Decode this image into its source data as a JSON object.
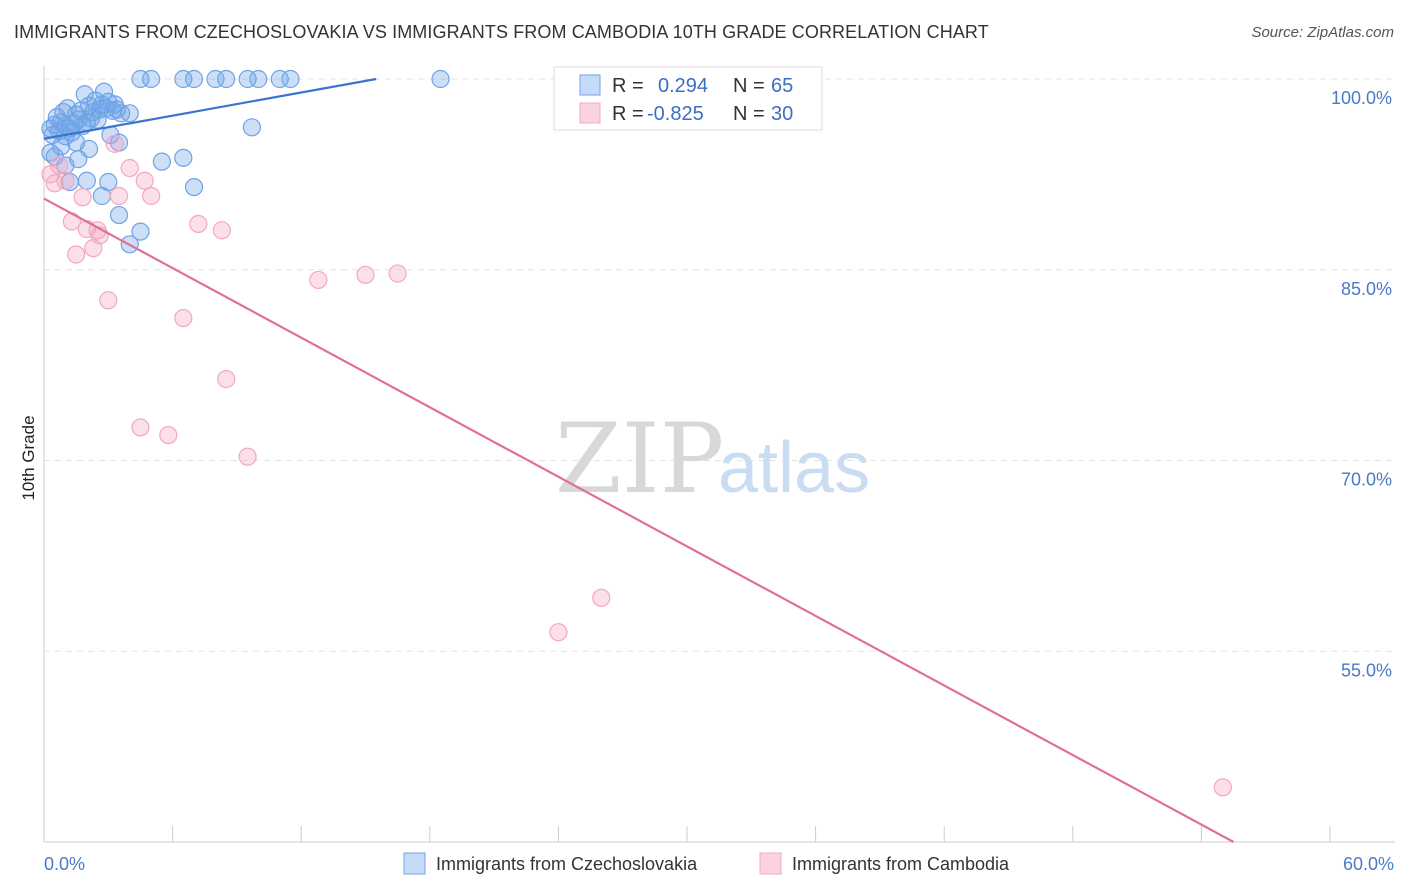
{
  "title": "IMMIGRANTS FROM CZECHOSLOVAKIA VS IMMIGRANTS FROM CAMBODIA 10TH GRADE CORRELATION CHART",
  "source": "Source: ZipAtlas.com",
  "watermark": {
    "zip": "ZIP",
    "atlas": "atlas"
  },
  "chart_data": {
    "type": "scatter",
    "title": "IMMIGRANTS FROM CZECHOSLOVAKIA VS IMMIGRANTS FROM CAMBODIA 10TH GRADE CORRELATION CHART",
    "xlabel": "",
    "ylabel": "10th Grade",
    "xlim": [
      0,
      60
    ],
    "ylim": [
      40,
      100
    ],
    "x_tick_labels": [
      "0.0%",
      "60.0%"
    ],
    "y_ticks": [
      100,
      85,
      70,
      55
    ],
    "y_tick_labels": [
      "100.0%",
      "85.0%",
      "70.0%",
      "55.0%"
    ],
    "grid": true,
    "legend": {
      "placement": "top-center",
      "rows": [
        {
          "r_label": "R =",
          "r_value": "0.294",
          "n_label": "N =",
          "n_value": "65"
        },
        {
          "r_label": "R =",
          "r_value": "-0.825",
          "n_label": "N =",
          "n_value": "30"
        }
      ]
    },
    "series": [
      {
        "name": "Immigrants from Czechoslovakia",
        "color": "#6fa3e8",
        "line_color": "#3a74cf",
        "trend": {
          "x": [
            0,
            15.5
          ],
          "y": [
            95.3,
            100
          ]
        },
        "points": [
          [
            0.3,
            96.1
          ],
          [
            0.4,
            95.6
          ],
          [
            0.5,
            96.4
          ],
          [
            0.6,
            97.0
          ],
          [
            0.7,
            95.9
          ],
          [
            0.8,
            96.6
          ],
          [
            0.9,
            97.4
          ],
          [
            1.0,
            96.3
          ],
          [
            1.1,
            97.7
          ],
          [
            1.2,
            96.1
          ],
          [
            1.3,
            95.8
          ],
          [
            1.4,
            96.5
          ],
          [
            1.5,
            97.2
          ],
          [
            1.6,
            96.8
          ],
          [
            1.7,
            97.5
          ],
          [
            1.8,
            96.3
          ],
          [
            1.9,
            98.8
          ],
          [
            2.0,
            96.6
          ],
          [
            2.1,
            97.9
          ],
          [
            2.2,
            96.9
          ],
          [
            2.3,
            97.4
          ],
          [
            2.4,
            98.3
          ],
          [
            2.5,
            96.8
          ],
          [
            2.6,
            97.6
          ],
          [
            2.7,
            98.0
          ],
          [
            2.8,
            99.0
          ],
          [
            2.9,
            97.7
          ],
          [
            3.0,
            98.2
          ],
          [
            3.1,
            95.6
          ],
          [
            3.2,
            97.5
          ],
          [
            3.3,
            98.0
          ],
          [
            3.4,
            97.6
          ],
          [
            3.5,
            95.0
          ],
          [
            3.6,
            97.3
          ],
          [
            4.5,
            100
          ],
          [
            5.0,
            100
          ],
          [
            6.5,
            100
          ],
          [
            7.0,
            100
          ],
          [
            8.0,
            100
          ],
          [
            8.5,
            100
          ],
          [
            9.5,
            100
          ],
          [
            10.0,
            100
          ],
          [
            11.0,
            100
          ],
          [
            11.5,
            100
          ],
          [
            18.5,
            100
          ],
          [
            9.7,
            96.2
          ],
          [
            0.3,
            94.2
          ],
          [
            0.5,
            93.9
          ],
          [
            1.0,
            93.2
          ],
          [
            1.2,
            91.9
          ],
          [
            1.6,
            93.7
          ],
          [
            2.0,
            92.0
          ],
          [
            2.1,
            94.5
          ],
          [
            2.7,
            90.8
          ],
          [
            3.0,
            91.9
          ],
          [
            3.5,
            89.3
          ],
          [
            4.0,
            87.0
          ],
          [
            4.5,
            88.0
          ],
          [
            5.5,
            93.5
          ],
          [
            6.5,
            93.8
          ],
          [
            7.0,
            91.5
          ],
          [
            1.0,
            95.5
          ],
          [
            0.8,
            94.7
          ],
          [
            4.0,
            97.3
          ],
          [
            1.5,
            95.0
          ]
        ]
      },
      {
        "name": "Immigrants from Cambodia",
        "color": "#f4a7bf",
        "line_color": "#e0709a",
        "trend": {
          "x": [
            0,
            55.5
          ],
          "y": [
            90.6,
            40
          ]
        },
        "points": [
          [
            0.3,
            92.5
          ],
          [
            0.5,
            91.8
          ],
          [
            0.7,
            93.2
          ],
          [
            1.0,
            92.0
          ],
          [
            1.3,
            88.8
          ],
          [
            1.5,
            86.2
          ],
          [
            1.8,
            90.7
          ],
          [
            2.0,
            88.2
          ],
          [
            2.3,
            86.7
          ],
          [
            2.5,
            88.1
          ],
          [
            2.6,
            87.7
          ],
          [
            3.0,
            82.6
          ],
          [
            3.3,
            94.9
          ],
          [
            3.5,
            90.8
          ],
          [
            4.0,
            93.0
          ],
          [
            4.5,
            72.6
          ],
          [
            4.7,
            92.0
          ],
          [
            5.0,
            90.8
          ],
          [
            5.8,
            72.0
          ],
          [
            6.5,
            81.2
          ],
          [
            7.2,
            88.6
          ],
          [
            8.3,
            88.1
          ],
          [
            8.5,
            76.4
          ],
          [
            9.5,
            70.3
          ],
          [
            12.8,
            84.2
          ],
          [
            15.0,
            84.6
          ],
          [
            16.5,
            84.7
          ],
          [
            24.0,
            56.5
          ],
          [
            26.0,
            59.2
          ],
          [
            55.0,
            44.3
          ]
        ]
      }
    ]
  },
  "bottom_legend": [
    {
      "label": "Immigrants from Czechoslovakia",
      "color": "#6fa3e8"
    },
    {
      "label": "Immigrants from Cambodia",
      "color": "#f4a7bf"
    }
  ]
}
